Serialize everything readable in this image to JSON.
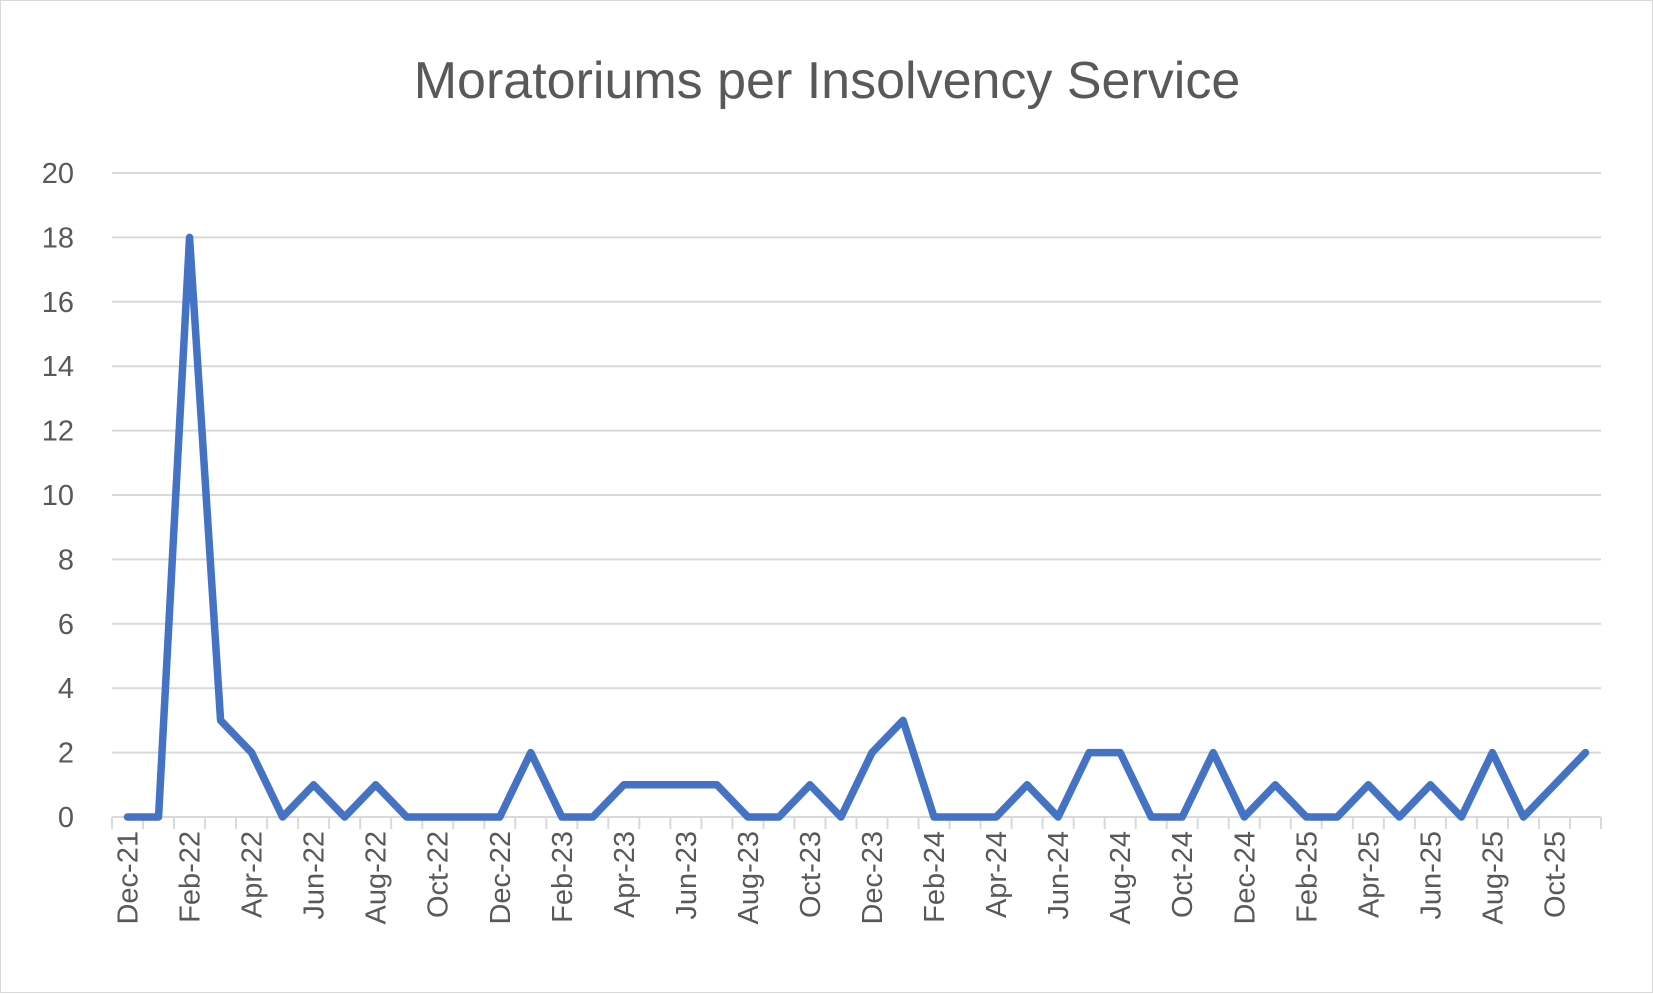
{
  "chart_data": {
    "type": "line",
    "title": "Moratoriums per Insolvency Service",
    "xlabel": "",
    "ylabel": "",
    "ylim": [
      0,
      20
    ],
    "yticks": [
      0,
      2,
      4,
      6,
      8,
      10,
      12,
      14,
      16,
      18,
      20
    ],
    "grid": true,
    "legend": "none",
    "color": "#4472c4",
    "x": [
      "Dec-21",
      "Jan-22",
      "Feb-22",
      "Mar-22",
      "Apr-22",
      "May-22",
      "Jun-22",
      "Jul-22",
      "Aug-22",
      "Sep-22",
      "Oct-22",
      "Nov-22",
      "Dec-22",
      "Jan-23",
      "Feb-23",
      "Mar-23",
      "Apr-23",
      "May-23",
      "Jun-23",
      "Jul-23",
      "Aug-23",
      "Sep-23",
      "Oct-23",
      "Nov-23",
      "Dec-23",
      "Jan-24",
      "Feb-24",
      "Mar-24",
      "Apr-24",
      "May-24",
      "Jun-24",
      "Jul-24",
      "Aug-24",
      "Sep-24",
      "Oct-24",
      "Nov-24",
      "Dec-24",
      "Jan-25",
      "Feb-25",
      "Mar-25",
      "Apr-25",
      "May-25",
      "Jun-25",
      "Jul-25",
      "Aug-25",
      "Sep-25",
      "Oct-25",
      "Nov-25"
    ],
    "xtick_labels": [
      "Dec-21",
      "Feb-22",
      "Apr-22",
      "Jun-22",
      "Aug-22",
      "Oct-22",
      "Dec-22",
      "Feb-23",
      "Apr-23",
      "Jun-23",
      "Aug-23",
      "Oct-23",
      "Dec-23",
      "Feb-24",
      "Apr-24",
      "Jun-24",
      "Aug-24",
      "Oct-24",
      "Dec-24",
      "Feb-25",
      "Apr-25",
      "Jun-25",
      "Aug-25",
      "Oct-25"
    ],
    "series": [
      {
        "name": "Moratoriums",
        "values": [
          0,
          0,
          18,
          3,
          2,
          0,
          1,
          0,
          1,
          0,
          0,
          0,
          0,
          2,
          0,
          0,
          1,
          1,
          1,
          1,
          0,
          0,
          1,
          0,
          2,
          3,
          0,
          0,
          0,
          1,
          0,
          2,
          2,
          0,
          0,
          2,
          0,
          1,
          0,
          0,
          1,
          0,
          1,
          0,
          2,
          0,
          1,
          2
        ]
      }
    ]
  }
}
